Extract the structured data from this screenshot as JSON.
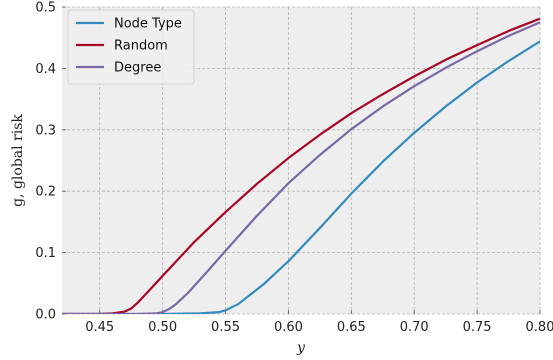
{
  "chart_data": {
    "type": "line",
    "title": "",
    "xlabel": "y",
    "ylabel": "g, global risk",
    "xlim": [
      0.42,
      0.8
    ],
    "ylim": [
      0.0,
      0.5
    ],
    "xticks": [
      0.45,
      0.5,
      0.55,
      0.6,
      0.65,
      0.7,
      0.75,
      0.8
    ],
    "xtick_labels": [
      "0.45",
      "0.50",
      "0.55",
      "0.60",
      "0.65",
      "0.70",
      "0.75",
      "0.80"
    ],
    "yticks": [
      0.0,
      0.1,
      0.2,
      0.3,
      0.4,
      0.5
    ],
    "ytick_labels": [
      "0.0",
      "0.1",
      "0.2",
      "0.3",
      "0.4",
      "0.5"
    ],
    "grid": true,
    "legend_position": "top-left",
    "series": [
      {
        "name": "Node Type",
        "color": "#348ABD",
        "x": [
          0.42,
          0.45,
          0.5,
          0.53,
          0.545,
          0.55,
          0.56,
          0.58,
          0.6,
          0.625,
          0.65,
          0.675,
          0.7,
          0.725,
          0.75,
          0.775,
          0.8
        ],
        "y": [
          0.0,
          0.0,
          0.0,
          0.001,
          0.003,
          0.006,
          0.016,
          0.048,
          0.086,
          0.14,
          0.196,
          0.248,
          0.295,
          0.338,
          0.377,
          0.412,
          0.444
        ]
      },
      {
        "name": "Random",
        "color": "#A60628",
        "x": [
          0.42,
          0.45,
          0.46,
          0.47,
          0.475,
          0.48,
          0.49,
          0.5,
          0.525,
          0.55,
          0.575,
          0.6,
          0.625,
          0.65,
          0.675,
          0.7,
          0.725,
          0.75,
          0.775,
          0.8
        ],
        "y": [
          0.0,
          0.0,
          0.001,
          0.004,
          0.009,
          0.018,
          0.04,
          0.062,
          0.117,
          0.166,
          0.212,
          0.254,
          0.292,
          0.327,
          0.358,
          0.387,
          0.414,
          0.438,
          0.461,
          0.481
        ]
      },
      {
        "name": "Degree",
        "color": "#7A68A6",
        "x": [
          0.42,
          0.48,
          0.495,
          0.5,
          0.505,
          0.51,
          0.52,
          0.535,
          0.55,
          0.575,
          0.6,
          0.625,
          0.65,
          0.675,
          0.7,
          0.725,
          0.75,
          0.775,
          0.8
        ],
        "y": [
          0.0,
          0.0,
          0.001,
          0.003,
          0.008,
          0.015,
          0.034,
          0.068,
          0.103,
          0.16,
          0.213,
          0.259,
          0.301,
          0.338,
          0.371,
          0.401,
          0.428,
          0.453,
          0.475
        ]
      }
    ]
  }
}
